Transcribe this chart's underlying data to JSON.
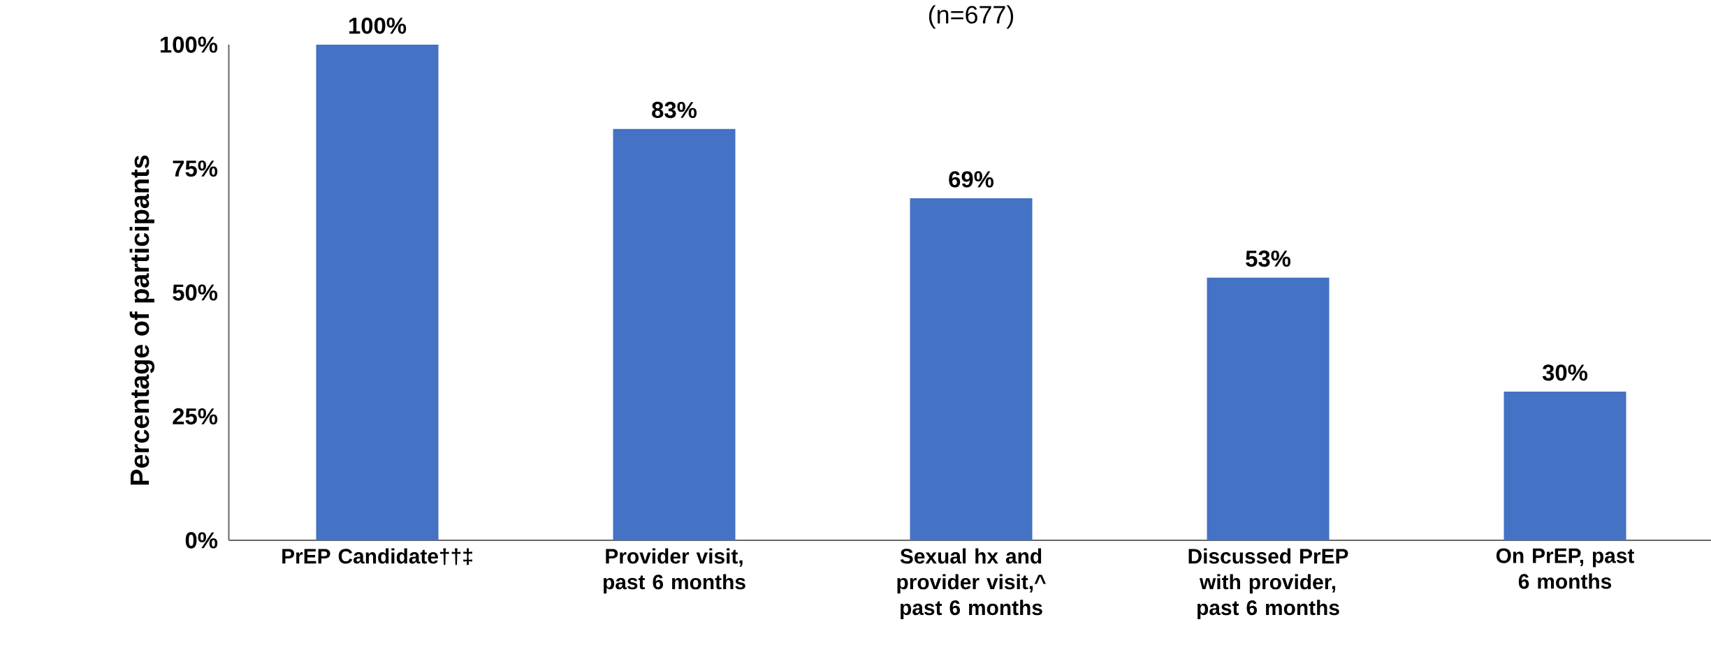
{
  "chart_data": {
    "type": "bar",
    "title": "(n=677)",
    "ylabel": "Percentage of participants",
    "categories": [
      "PrEP Candidate††‡",
      "Provider visit, past 6 months",
      "Sexual hx and provider visit,^ past 6 months",
      "Discussed PrEP with provider, past 6 months",
      "On PrEP, past 6 months"
    ],
    "values": [
      100,
      83,
      69,
      53,
      30
    ],
    "value_labels": [
      "100%",
      "83%",
      "69%",
      "53%",
      "30%"
    ],
    "color": "#4472c4",
    "ylim": [
      0,
      100
    ],
    "yticks": [
      {
        "value": 0,
        "label": "0%"
      },
      {
        "value": 25,
        "label": "25%"
      },
      {
        "value": 50,
        "label": "50%"
      },
      {
        "value": 75,
        "label": "75%"
      },
      {
        "value": 100,
        "label": "100%"
      }
    ],
    "grid": false
  }
}
